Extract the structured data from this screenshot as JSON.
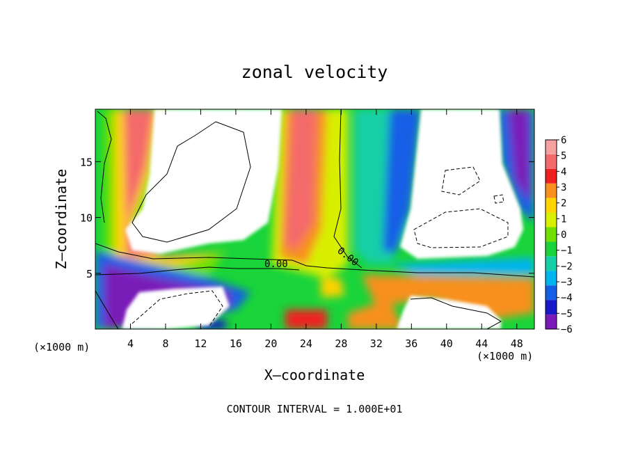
{
  "chart_data": {
    "type": "heatmap",
    "title": "zonal velocity",
    "xlabel": "X–coordinate",
    "ylabel": "Z–coordinate",
    "x_unit": "(×1000 m)",
    "y_unit": "(×1000 m)",
    "xlim": [
      0,
      50
    ],
    "ylim": [
      0,
      19.7
    ],
    "x_ticks": [
      4,
      8,
      12,
      16,
      20,
      24,
      28,
      32,
      36,
      40,
      44,
      48
    ],
    "y_ticks": [
      5,
      10,
      15
    ],
    "colorbar": {
      "ticks": [
        "6",
        "5",
        "4",
        "3",
        "2",
        "1",
        "0",
        "−1",
        "−2",
        "−3",
        "−4",
        "−5",
        "−6"
      ],
      "range": [
        -6,
        6
      ],
      "colors": [
        "#f6a0a0",
        "#f46a6a",
        "#ef2020",
        "#f7901c",
        "#ffd200",
        "#d8ef00",
        "#6fe000",
        "#19d43a",
        "#16cfa6",
        "#00b4f0",
        "#155fe6",
        "#1818c8",
        "#7a1ab8"
      ]
    },
    "annotations": {
      "contour_label_1": "0.00",
      "contour_label_2": "0.00",
      "footer": "CONTOUR INTERVAL = 1.000E+01"
    }
  }
}
